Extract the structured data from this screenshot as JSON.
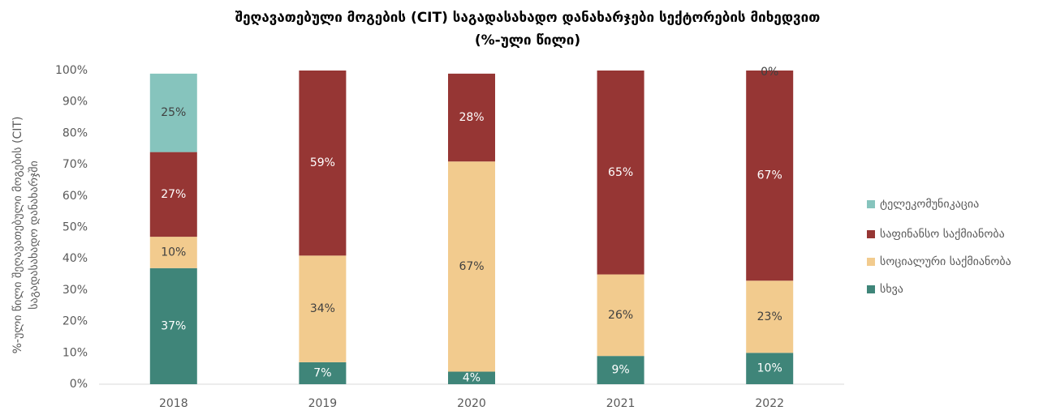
{
  "chart_data": {
    "type": "stacked_bar",
    "title": "შეღავათებული მოგების (CIT)  საგადასახადო დანახარჯები სექტორების მიხედვით",
    "subtitle": "(%-ული წილი)",
    "y_label": [
      "%-ული წილი შეღავათებული მოგების (CIT)",
      "საგადასახადო დანახარჯში"
    ],
    "categories": [
      "2018",
      "2019",
      "2020",
      "2021",
      "2022"
    ],
    "series": [
      {
        "name": "სხვა",
        "color": "#3f8579",
        "values": [
          37,
          7,
          4,
          9,
          10
        ],
        "value_labels": [
          "37%",
          "7%",
          "4%",
          "9%",
          "10%"
        ]
      },
      {
        "name": "სოციალური საქმიანობა",
        "color": "#f2cb8e",
        "values": [
          10,
          34,
          67,
          26,
          23
        ],
        "value_labels": [
          "10%",
          "34%",
          "67%",
          "26%",
          "23%"
        ]
      },
      {
        "name": "საფინანსო საქმიანობა",
        "color": "#963634",
        "values": [
          27,
          59,
          28,
          65,
          67
        ],
        "value_labels": [
          "27%",
          "59%",
          "28%",
          "65%",
          "67%"
        ]
      },
      {
        "name": "ტელეკომუნიკაცია",
        "color": "#86c4bd",
        "values": [
          25,
          null,
          null,
          null,
          0
        ],
        "value_labels": [
          "25%",
          null,
          null,
          null,
          "0%"
        ]
      }
    ],
    "ylim": [
      0,
      100
    ],
    "yticks": [
      {
        "value": 0,
        "label": "0%"
      },
      {
        "value": 10,
        "label": "10%"
      },
      {
        "value": 20,
        "label": "20%"
      },
      {
        "value": 30,
        "label": "30%"
      },
      {
        "value": 40,
        "label": "40%"
      },
      {
        "value": 50,
        "label": "50%"
      },
      {
        "value": 60,
        "label": "60%"
      },
      {
        "value": 70,
        "label": "70%"
      },
      {
        "value": 80,
        "label": "80%"
      },
      {
        "value": 90,
        "label": "90%"
      },
      {
        "value": 100,
        "label": "100%"
      }
    ],
    "legend": "right"
  }
}
